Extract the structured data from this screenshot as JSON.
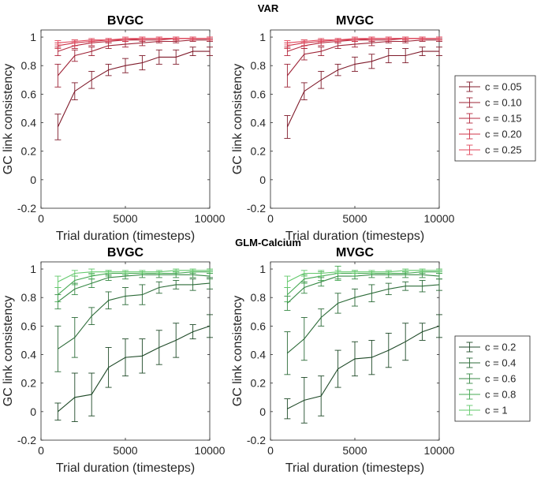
{
  "figure": {
    "groups": [
      {
        "suptitle": "VAR"
      },
      {
        "suptitle": "GLM-Calcium"
      }
    ]
  },
  "chart_data": [
    {
      "type": "line",
      "group": "VAR",
      "title": "BVGC",
      "xlabel": "Trial duration (timesteps)",
      "ylabel": "GC link consistency",
      "xlim": [
        0,
        10000
      ],
      "ylim": [
        -0.2,
        1.05
      ],
      "xticks": [
        "0",
        "5000",
        "10000"
      ],
      "yticks": [
        "-0.2",
        "0",
        "0.2",
        "0.4",
        "0.6",
        "0.8",
        "1"
      ],
      "grid": false,
      "x": [
        1000,
        2000,
        3000,
        4000,
        5000,
        6000,
        7000,
        8000,
        9000,
        10000
      ],
      "series": [
        {
          "name": "c = 0.05",
          "color": "#7f1b2b",
          "values": [
            0.37,
            0.62,
            0.7,
            0.77,
            0.8,
            0.82,
            0.86,
            0.86,
            0.9,
            0.9
          ],
          "errors": [
            0.09,
            0.06,
            0.06,
            0.04,
            0.05,
            0.05,
            0.05,
            0.05,
            0.03,
            0.03
          ]
        },
        {
          "name": "c = 0.10",
          "color": "#9e2336",
          "values": [
            0.73,
            0.87,
            0.9,
            0.94,
            0.95,
            0.96,
            0.97,
            0.97,
            0.98,
            0.98
          ],
          "errors": [
            0.08,
            0.04,
            0.03,
            0.02,
            0.02,
            0.02,
            0.01,
            0.01,
            0.01,
            0.01
          ]
        },
        {
          "name": "c = 0.15",
          "color": "#b52a3f",
          "values": [
            0.9,
            0.94,
            0.96,
            0.97,
            0.98,
            0.98,
            0.98,
            0.99,
            0.99,
            0.99
          ],
          "errors": [
            0.03,
            0.02,
            0.02,
            0.01,
            0.01,
            0.01,
            0.01,
            0.01,
            0.01,
            0.01
          ]
        },
        {
          "name": "c = 0.20",
          "color": "#cf3449",
          "values": [
            0.94,
            0.96,
            0.97,
            0.98,
            0.98,
            0.99,
            0.99,
            0.99,
            0.99,
            0.99
          ],
          "errors": [
            0.02,
            0.02,
            0.01,
            0.01,
            0.01,
            0.01,
            0.01,
            0.01,
            0.01,
            0.01
          ]
        },
        {
          "name": "c = 0.25",
          "color": "#e0465b",
          "values": [
            0.96,
            0.97,
            0.98,
            0.98,
            0.99,
            0.99,
            0.99,
            0.99,
            0.99,
            0.99
          ],
          "errors": [
            0.015,
            0.01,
            0.01,
            0.01,
            0.01,
            0.01,
            0.01,
            0.01,
            0.01,
            0.01
          ]
        }
      ]
    },
    {
      "type": "line",
      "group": "VAR",
      "title": "MVGC",
      "xlabel": "Trial duration (timesteps)",
      "ylabel": "GC link consistency",
      "xlim": [
        0,
        10000
      ],
      "ylim": [
        -0.2,
        1.05
      ],
      "xticks": [
        "0",
        "5000",
        "10000"
      ],
      "yticks": [
        "-0.2",
        "0",
        "0.2",
        "0.4",
        "0.6",
        "0.8",
        "1"
      ],
      "grid": false,
      "x": [
        1000,
        2000,
        3000,
        4000,
        5000,
        6000,
        7000,
        8000,
        9000,
        10000
      ],
      "series": [
        {
          "name": "c = 0.05",
          "color": "#7f1b2b",
          "values": [
            0.37,
            0.62,
            0.7,
            0.77,
            0.81,
            0.83,
            0.87,
            0.87,
            0.9,
            0.9
          ],
          "errors": [
            0.08,
            0.06,
            0.06,
            0.04,
            0.05,
            0.05,
            0.05,
            0.05,
            0.03,
            0.03
          ]
        },
        {
          "name": "c = 0.10",
          "color": "#9e2336",
          "values": [
            0.73,
            0.88,
            0.9,
            0.94,
            0.95,
            0.96,
            0.97,
            0.97,
            0.98,
            0.98
          ],
          "errors": [
            0.08,
            0.04,
            0.03,
            0.02,
            0.02,
            0.02,
            0.01,
            0.01,
            0.01,
            0.01
          ]
        },
        {
          "name": "c = 0.15",
          "color": "#b52a3f",
          "values": [
            0.9,
            0.94,
            0.96,
            0.97,
            0.98,
            0.98,
            0.98,
            0.99,
            0.99,
            0.99
          ],
          "errors": [
            0.03,
            0.02,
            0.02,
            0.01,
            0.01,
            0.01,
            0.01,
            0.01,
            0.01,
            0.01
          ]
        },
        {
          "name": "c = 0.20",
          "color": "#cf3449",
          "values": [
            0.94,
            0.96,
            0.97,
            0.98,
            0.98,
            0.99,
            0.99,
            0.99,
            0.99,
            0.99
          ],
          "errors": [
            0.02,
            0.02,
            0.01,
            0.01,
            0.01,
            0.01,
            0.01,
            0.01,
            0.01,
            0.01
          ]
        },
        {
          "name": "c = 0.25",
          "color": "#e0465b",
          "values": [
            0.96,
            0.97,
            0.98,
            0.98,
            0.99,
            0.99,
            0.99,
            0.99,
            0.99,
            0.99
          ],
          "errors": [
            0.015,
            0.01,
            0.01,
            0.01,
            0.01,
            0.01,
            0.01,
            0.01,
            0.01,
            0.01
          ]
        }
      ]
    },
    {
      "type": "line",
      "group": "GLM-Calcium",
      "title": "BVGC",
      "xlabel": "Trial duration (timesteps)",
      "ylabel": "GC link consistency",
      "xlim": [
        0,
        10000
      ],
      "ylim": [
        -0.2,
        1.05
      ],
      "xticks": [
        "0",
        "5000",
        "10000"
      ],
      "yticks": [
        "-0.2",
        "0",
        "0.2",
        "0.4",
        "0.6",
        "0.8",
        "1"
      ],
      "grid": false,
      "x": [
        1000,
        2000,
        3000,
        4000,
        5000,
        6000,
        7000,
        8000,
        9000,
        10000
      ],
      "series": [
        {
          "name": "c = 0.2",
          "color": "#1f4a28",
          "values": [
            0.0,
            0.1,
            0.12,
            0.31,
            0.38,
            0.39,
            0.45,
            0.5,
            0.56,
            0.6
          ],
          "errors": [
            0.06,
            0.17,
            0.15,
            0.14,
            0.13,
            0.12,
            0.12,
            0.12,
            0.05,
            0.08
          ]
        },
        {
          "name": "c = 0.4",
          "color": "#2c6b38",
          "values": [
            0.44,
            0.52,
            0.67,
            0.78,
            0.81,
            0.82,
            0.87,
            0.89,
            0.89,
            0.9
          ],
          "errors": [
            0.16,
            0.14,
            0.06,
            0.06,
            0.06,
            0.07,
            0.04,
            0.03,
            0.04,
            0.04
          ]
        },
        {
          "name": "c = 0.6",
          "color": "#388a46",
          "values": [
            0.77,
            0.86,
            0.9,
            0.94,
            0.95,
            0.96,
            0.96,
            0.96,
            0.96,
            0.95
          ],
          "errors": [
            0.05,
            0.04,
            0.03,
            0.02,
            0.02,
            0.02,
            0.02,
            0.02,
            0.02,
            0.02
          ]
        },
        {
          "name": "c = 0.8",
          "color": "#45a853",
          "values": [
            0.82,
            0.92,
            0.95,
            0.97,
            0.97,
            0.97,
            0.97,
            0.97,
            0.98,
            0.98
          ],
          "errors": [
            0.05,
            0.03,
            0.02,
            0.02,
            0.01,
            0.01,
            0.01,
            0.01,
            0.01,
            0.01
          ]
        },
        {
          "name": "c = 1",
          "color": "#62c96b",
          "values": [
            0.91,
            0.97,
            0.98,
            0.98,
            0.98,
            0.98,
            0.98,
            0.99,
            0.99,
            0.99
          ],
          "errors": [
            0.04,
            0.02,
            0.02,
            0.01,
            0.01,
            0.01,
            0.01,
            0.01,
            0.01,
            0.01
          ]
        }
      ]
    },
    {
      "type": "line",
      "group": "GLM-Calcium",
      "title": "MVGC",
      "xlabel": "Trial duration (timesteps)",
      "ylabel": "GC link consistency",
      "xlim": [
        0,
        10000
      ],
      "ylim": [
        -0.2,
        1.05
      ],
      "xticks": [
        "0",
        "5000",
        "10000"
      ],
      "yticks": [
        "-0.2",
        "0",
        "0.2",
        "0.4",
        "0.6",
        "0.8",
        "1"
      ],
      "grid": false,
      "x": [
        1000,
        2000,
        3000,
        4000,
        5000,
        6000,
        7000,
        8000,
        9000,
        10000
      ],
      "series": [
        {
          "name": "c = 0.2",
          "color": "#1f4a28",
          "values": [
            0.02,
            0.08,
            0.11,
            0.3,
            0.37,
            0.38,
            0.43,
            0.49,
            0.56,
            0.6
          ],
          "errors": [
            0.07,
            0.16,
            0.14,
            0.13,
            0.12,
            0.12,
            0.12,
            0.13,
            0.06,
            0.08
          ]
        },
        {
          "name": "c = 0.4",
          "color": "#2c6b38",
          "values": [
            0.41,
            0.51,
            0.66,
            0.76,
            0.8,
            0.83,
            0.86,
            0.88,
            0.88,
            0.89
          ],
          "errors": [
            0.15,
            0.15,
            0.06,
            0.07,
            0.06,
            0.06,
            0.04,
            0.03,
            0.04,
            0.04
          ]
        },
        {
          "name": "c = 0.6",
          "color": "#388a46",
          "values": [
            0.76,
            0.87,
            0.91,
            0.95,
            0.95,
            0.96,
            0.96,
            0.96,
            0.96,
            0.95
          ],
          "errors": [
            0.05,
            0.04,
            0.03,
            0.02,
            0.02,
            0.02,
            0.02,
            0.02,
            0.02,
            0.02
          ]
        },
        {
          "name": "c = 0.8",
          "color": "#45a853",
          "values": [
            0.82,
            0.93,
            0.95,
            0.97,
            0.97,
            0.97,
            0.97,
            0.97,
            0.98,
            0.98
          ],
          "errors": [
            0.05,
            0.03,
            0.03,
            0.05,
            0.02,
            0.01,
            0.01,
            0.01,
            0.01,
            0.01
          ]
        },
        {
          "name": "c = 1",
          "color": "#62c96b",
          "values": [
            0.91,
            0.97,
            0.97,
            0.98,
            0.98,
            0.98,
            0.98,
            0.99,
            0.99,
            0.99
          ],
          "errors": [
            0.04,
            0.02,
            0.02,
            0.01,
            0.01,
            0.01,
            0.01,
            0.01,
            0.01,
            0.01
          ]
        }
      ]
    }
  ]
}
